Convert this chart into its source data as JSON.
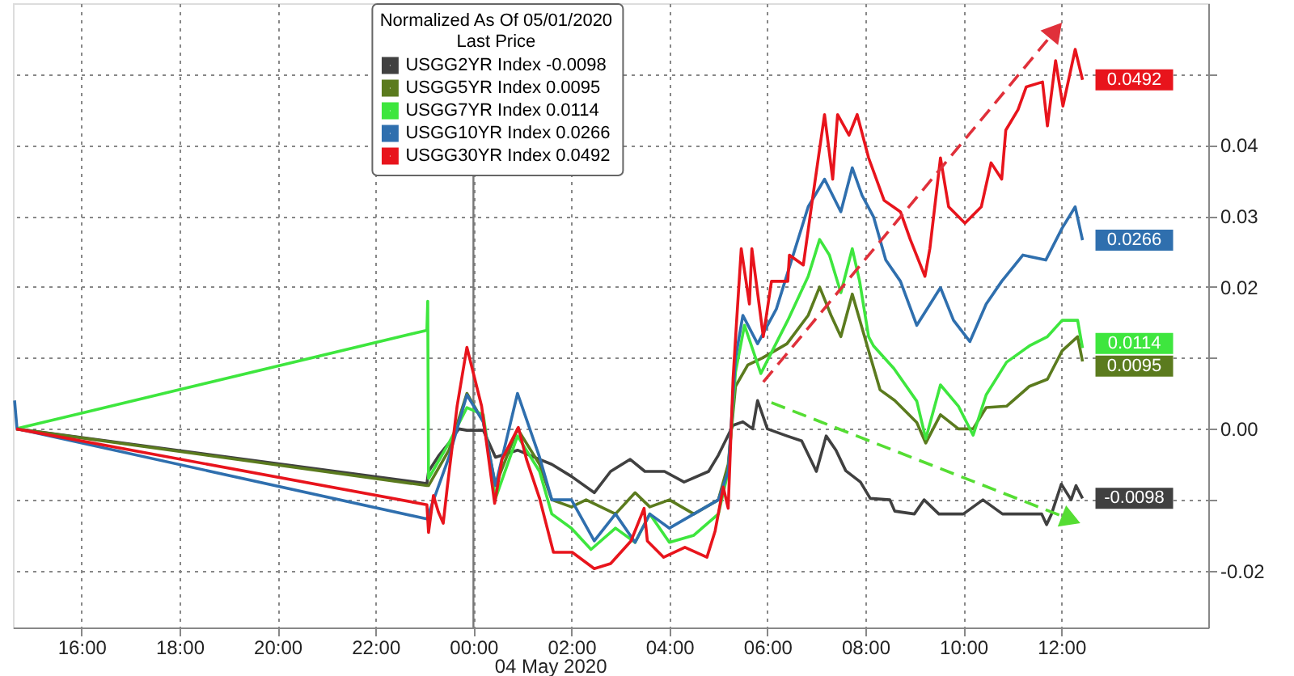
{
  "chart_data": {
    "type": "line",
    "legend_title": "Normalized As Of 05/01/2020\nLast Price",
    "legend": "top",
    "grid": true,
    "xlim": [
      "2020-05-03T14:36",
      "2020-05-04T15:00"
    ],
    "ylim": [
      -0.028,
      0.06
    ],
    "xticks": [
      {
        "value": "2020-05-03T16:00",
        "label": "16:00"
      },
      {
        "value": "2020-05-03T18:00",
        "label": "18:00"
      },
      {
        "value": "2020-05-03T20:00",
        "label": "20:00"
      },
      {
        "value": "2020-05-03T22:00",
        "label": "22:00"
      },
      {
        "value": "2020-05-04T00:00",
        "label": "00:00"
      },
      {
        "value": "2020-05-04T02:00",
        "label": "02:00"
      },
      {
        "value": "2020-05-04T04:00",
        "label": "04:00"
      },
      {
        "value": "2020-05-04T06:00",
        "label": "06:00"
      },
      {
        "value": "2020-05-04T08:00",
        "label": "08:00"
      },
      {
        "value": "2020-05-04T10:00",
        "label": "10:00"
      },
      {
        "value": "2020-05-04T12:00",
        "label": "12:00"
      }
    ],
    "yticks": [
      {
        "value": -0.02,
        "label": "-0.02"
      },
      {
        "value": -0.01,
        "label": null
      },
      {
        "value": 0,
        "label": "0.00"
      },
      {
        "value": 0.01,
        "label": null
      },
      0.02,
      0.03,
      0.04,
      {
        "value": 0.05,
        "label": null
      }
    ],
    "ref_lines": [
      {
        "axis": "x",
        "value": "2020-05-04T00:00",
        "color": "#777777"
      }
    ],
    "annotations": [
      "04 May 2020"
    ],
    "series": [
      {
        "name": "USGG2YR Index -0.0098",
        "color": "#404040",
        "value_labels": [
          null,
          null,
          null,
          null,
          null,
          null,
          null,
          null,
          null,
          null,
          null,
          null,
          null,
          null,
          null,
          null,
          null,
          null,
          null,
          null,
          null,
          null,
          null,
          null,
          null,
          null,
          null,
          null,
          null,
          null,
          null,
          null,
          null,
          null,
          null,
          null,
          null,
          null,
          null,
          null,
          null,
          null,
          null,
          null,
          null,
          null,
          null,
          null,
          null,
          "-0.0098"
        ],
        "x": [
          "2020-05-03T14:40",
          "2020-05-03T23:03",
          "2020-05-03T23:05",
          "2020-05-03T23:18",
          "2020-05-03T23:30",
          "2020-05-03T23:42",
          "2020-05-03T23:52",
          "2020-05-04T00:12",
          "2020-05-04T00:27",
          "2020-05-04T00:54",
          "2020-05-04T01:21",
          "2020-05-04T01:36",
          "2020-05-04T02:00",
          "2020-05-04T02:28",
          "2020-05-04T02:48",
          "2020-05-04T03:12",
          "2020-05-04T03:30",
          "2020-05-04T03:54",
          "2020-05-04T04:18",
          "2020-05-04T04:48",
          "2020-05-04T05:00",
          "2020-05-04T05:18",
          "2020-05-04T05:30",
          "2020-05-04T05:42",
          "2020-05-04T05:48",
          "2020-05-04T06:00",
          "2020-05-04T06:24",
          "2020-05-04T06:42",
          "2020-05-04T07:00",
          "2020-05-04T07:12",
          "2020-05-04T07:24",
          "2020-05-04T07:36",
          "2020-05-04T07:54",
          "2020-05-04T08:06",
          "2020-05-04T08:30",
          "2020-05-04T08:36",
          "2020-05-04T09:00",
          "2020-05-04T09:12",
          "2020-05-04T09:30",
          "2020-05-04T10:00",
          "2020-05-04T10:24",
          "2020-05-04T10:48",
          "2020-05-04T11:18",
          "2020-05-04T11:36",
          "2020-05-04T11:42",
          "2020-05-04T11:48",
          "2020-05-04T12:00",
          "2020-05-04T12:12",
          "2020-05-04T12:18",
          "2020-05-04T12:26"
        ],
        "values": [
          0,
          -0.0077,
          -0.006,
          -0.0037,
          -0.002,
          0.0,
          -0.0002,
          -0.0002,
          -0.004,
          -0.003,
          -0.0043,
          -0.005,
          -0.0067,
          -0.009,
          -0.006,
          -0.0043,
          -0.006,
          -0.006,
          -0.0075,
          -0.006,
          -0.0037,
          0.0005,
          0.001,
          0.0,
          0.004,
          0.0,
          -0.001,
          -0.0017,
          -0.006,
          -0.001,
          -0.003,
          -0.0059,
          -0.0075,
          -0.0098,
          -0.01,
          -0.0116,
          -0.012,
          -0.01,
          -0.012,
          -0.012,
          -0.01,
          -0.012,
          -0.012,
          -0.012,
          -0.0135,
          -0.012,
          -0.0078,
          -0.01,
          -0.008,
          -0.0098
        ]
      },
      {
        "name": "USGG5YR Index 0.0095",
        "color": "#5b7b1e",
        "value_labels": [
          null,
          null,
          null,
          null,
          null,
          null,
          null,
          null,
          null,
          null,
          null,
          null,
          null,
          null,
          null,
          null,
          null,
          null,
          null,
          null,
          null,
          null,
          null,
          null,
          null,
          null,
          null,
          null,
          null,
          null,
          null,
          null,
          null,
          null,
          null,
          null,
          null,
          null,
          null,
          null,
          null,
          null,
          "0.0095"
        ],
        "x": [
          "2020-05-03T14:40",
          "2020-05-03T23:03",
          "2020-05-03T23:05",
          "2020-05-03T23:30",
          "2020-05-03T23:52",
          "2020-05-04T00:12",
          "2020-05-04T00:27",
          "2020-05-04T00:54",
          "2020-05-04T01:21",
          "2020-05-04T01:36",
          "2020-05-04T02:00",
          "2020-05-04T02:18",
          "2020-05-04T02:54",
          "2020-05-04T03:18",
          "2020-05-04T03:36",
          "2020-05-04T04:00",
          "2020-05-04T04:30",
          "2020-05-04T05:00",
          "2020-05-04T05:12",
          "2020-05-04T05:21",
          "2020-05-04T05:36",
          "2020-05-04T05:54",
          "2020-05-04T06:24",
          "2020-05-04T06:50",
          "2020-05-04T07:04",
          "2020-05-04T07:18",
          "2020-05-04T07:30",
          "2020-05-04T07:44",
          "2020-05-04T08:04",
          "2020-05-04T08:18",
          "2020-05-04T08:36",
          "2020-05-04T09:03",
          "2020-05-04T09:14",
          "2020-05-04T09:32",
          "2020-05-04T09:54",
          "2020-05-04T10:12",
          "2020-05-04T10:28",
          "2020-05-04T10:53",
          "2020-05-04T11:21",
          "2020-05-04T11:43",
          "2020-05-04T12:01",
          "2020-05-04T12:20",
          "2020-05-04T12:26"
        ],
        "values": [
          0,
          -0.008,
          -0.008,
          -0.003,
          0.005,
          0.001,
          -0.008,
          0.0,
          -0.005,
          -0.01,
          -0.011,
          -0.01,
          -0.012,
          -0.009,
          -0.011,
          -0.01,
          -0.012,
          -0.01,
          -0.005,
          0.006,
          0.009,
          0.01,
          0.012,
          0.016,
          0.02,
          0.016,
          0.013,
          0.019,
          0.011,
          0.0055,
          0.004,
          0.0009,
          -0.002,
          0.002,
          0.0,
          0.0,
          0.003,
          0.0032,
          0.006,
          0.007,
          0.011,
          0.013,
          0.0095
        ]
      },
      {
        "name": "USGG7YR Index 0.0114",
        "color": "#3ee63e",
        "value_labels": [
          null,
          null,
          null,
          null,
          null,
          null,
          null,
          null,
          null,
          null,
          null,
          null,
          null,
          null,
          null,
          null,
          null,
          null,
          null,
          null,
          null,
          null,
          null,
          null,
          null,
          null,
          null,
          null,
          null,
          null,
          null,
          null,
          null,
          null,
          null,
          null,
          null,
          null,
          null,
          null,
          null,
          null,
          null,
          null,
          "0.0114"
        ],
        "x": [
          "2020-05-03T14:40",
          "2020-05-03T23:03",
          "2020-05-03T23:04",
          "2020-05-03T23:05",
          "2020-05-03T23:30",
          "2020-05-03T23:52",
          "2020-05-04T00:12",
          "2020-05-04T00:27",
          "2020-05-04T00:54",
          "2020-05-04T01:21",
          "2020-05-04T01:36",
          "2020-05-04T02:00",
          "2020-05-04T02:24",
          "2020-05-04T02:54",
          "2020-05-04T03:18",
          "2020-05-04T03:36",
          "2020-05-04T04:00",
          "2020-05-04T04:30",
          "2020-05-04T05:00",
          "2020-05-04T05:12",
          "2020-05-04T05:21",
          "2020-05-04T05:32",
          "2020-05-04T05:52",
          "2020-05-04T06:25",
          "2020-05-04T06:50",
          "2020-05-04T07:04",
          "2020-05-04T07:16",
          "2020-05-04T07:30",
          "2020-05-04T07:44",
          "2020-05-04T07:53",
          "2020-05-04T08:04",
          "2020-05-04T08:10",
          "2020-05-04T08:35",
          "2020-05-04T09:03",
          "2020-05-04T09:14",
          "2020-05-04T09:32",
          "2020-05-04T09:54",
          "2020-05-04T10:12",
          "2020-05-04T10:28",
          "2020-05-04T10:53",
          "2020-05-04T11:21",
          "2020-05-04T11:43",
          "2020-05-04T12:01",
          "2020-05-04T12:20",
          "2020-05-04T12:26"
        ],
        "values": [
          0,
          0.0139,
          0.018,
          -0.007,
          -0.002,
          0.003,
          0.002,
          -0.0098,
          -0.001,
          -0.006,
          -0.012,
          -0.014,
          -0.017,
          -0.014,
          -0.016,
          -0.012,
          -0.016,
          -0.015,
          -0.012,
          -0.006,
          0.008,
          0.0146,
          0.0078,
          0.0153,
          0.0215,
          0.0267,
          0.0245,
          0.0192,
          0.0254,
          0.0208,
          0.013,
          0.0117,
          0.0085,
          0.0039,
          -0.0014,
          0.0062,
          0.0032,
          -0.0009,
          0.0048,
          0.0094,
          0.0117,
          0.013,
          0.0153,
          0.0153,
          0.0114
        ]
      },
      {
        "name": "USGG10YR Index 0.0266",
        "color": "#2f6fae",
        "value_labels": [
          null,
          null,
          null,
          null,
          null,
          null,
          null,
          null,
          null,
          null,
          null,
          null,
          null,
          null,
          null,
          null,
          null,
          null,
          null,
          null,
          null,
          null,
          null,
          null,
          null,
          null,
          null,
          null,
          null,
          null,
          null,
          null,
          null,
          null,
          null,
          null,
          null,
          null,
          null,
          null,
          null,
          null,
          "0.0266"
        ],
        "x": [
          "2020-05-03T14:38",
          "2020-05-03T14:41",
          "2020-05-03T23:03",
          "2020-05-03T23:05",
          "2020-05-03T23:30",
          "2020-05-03T23:52",
          "2020-05-04T00:12",
          "2020-05-04T00:27",
          "2020-05-04T00:54",
          "2020-05-04T01:21",
          "2020-05-04T01:36",
          "2020-05-04T02:00",
          "2020-05-04T02:28",
          "2020-05-04T02:54",
          "2020-05-04T03:18",
          "2020-05-04T03:36",
          "2020-05-04T04:00",
          "2020-05-04T04:30",
          "2020-05-04T05:00",
          "2020-05-04T05:12",
          "2020-05-04T05:21",
          "2020-05-04T05:30",
          "2020-05-04T05:48",
          "2020-05-04T06:11",
          "2020-05-04T06:50",
          "2020-05-04T07:10",
          "2020-05-04T07:30",
          "2020-05-04T07:44",
          "2020-05-04T07:56",
          "2020-05-04T08:10",
          "2020-05-04T08:25",
          "2020-05-04T08:43",
          "2020-05-04T09:03",
          "2020-05-04T09:32",
          "2020-05-04T09:48",
          "2020-05-04T10:08",
          "2020-05-04T10:28",
          "2020-05-04T10:47",
          "2020-05-04T11:13",
          "2020-05-04T11:41",
          "2020-05-04T12:01",
          "2020-05-04T12:17",
          "2020-05-04T12:26"
        ],
        "values": [
          0.004,
          0,
          -0.0127,
          -0.012,
          -0.004,
          0.0048,
          0.001,
          -0.008,
          0.005,
          -0.004,
          -0.01,
          -0.01,
          -0.0158,
          -0.012,
          -0.016,
          -0.012,
          -0.014,
          -0.012,
          -0.01,
          -0.006,
          0.01,
          0.016,
          0.012,
          0.0169,
          0.0313,
          0.0352,
          0.0306,
          0.0368,
          0.0329,
          0.0299,
          0.0238,
          0.0208,
          0.0146,
          0.0199,
          0.0153,
          0.0123,
          0.0176,
          0.0208,
          0.0245,
          0.0238,
          0.0283,
          0.0313,
          0.0266
        ]
      },
      {
        "name": "USGG30YR Index 0.0492",
        "color": "#e8141c",
        "value_labels": [
          null,
          null,
          null,
          null,
          null,
          null,
          null,
          null,
          null,
          null,
          null,
          null,
          null,
          null,
          null,
          null,
          null,
          null,
          null,
          null,
          null,
          null,
          null,
          null,
          null,
          null,
          null,
          null,
          null,
          null,
          null,
          null,
          null,
          null,
          null,
          null,
          null,
          null,
          null,
          null,
          null,
          null,
          null,
          null,
          null,
          null,
          null,
          null,
          null,
          null,
          null,
          null,
          null,
          null,
          null,
          null,
          null,
          null,
          null,
          null,
          null,
          null,
          null,
          null,
          "0.0492"
        ],
        "x": [
          "2020-05-03T14:40",
          "2020-05-03T23:03",
          "2020-05-03T23:05",
          "2020-05-03T23:11",
          "2020-05-03T23:17",
          "2020-05-03T23:23",
          "2020-05-03T23:28",
          "2020-05-03T23:40",
          "2020-05-03T23:52",
          "2020-05-04T00:10",
          "2020-05-04T00:26",
          "2020-05-04T00:35",
          "2020-05-04T00:55",
          "2020-05-04T01:05",
          "2020-05-04T01:21",
          "2020-05-04T01:38",
          "2020-05-04T02:01",
          "2020-05-04T02:28",
          "2020-05-04T02:48",
          "2020-05-04T03:13",
          "2020-05-04T03:29",
          "2020-05-04T03:33",
          "2020-05-04T03:53",
          "2020-05-04T04:19",
          "2020-05-04T04:46",
          "2020-05-04T04:56",
          "2020-05-04T05:06",
          "2020-05-04T05:12",
          "2020-05-04T05:18",
          "2020-05-04T05:22",
          "2020-05-04T05:28",
          "2020-05-04T05:38",
          "2020-05-04T05:41",
          "2020-05-04T05:55",
          "2020-05-04T06:05",
          "2020-05-04T06:25",
          "2020-05-04T06:27",
          "2020-05-04T06:44",
          "2020-05-04T06:55",
          "2020-05-04T07:10",
          "2020-05-04T07:20",
          "2020-05-04T07:26",
          "2020-05-04T07:40",
          "2020-05-04T07:50",
          "2020-05-04T08:04",
          "2020-05-04T08:23",
          "2020-05-04T08:43",
          "2020-05-04T08:55",
          "2020-05-04T09:13",
          "2020-05-04T09:19",
          "2020-05-04T09:32",
          "2020-05-04T09:42",
          "2020-05-04T10:02",
          "2020-05-04T10:22",
          "2020-05-04T10:34",
          "2020-05-04T10:47",
          "2020-05-04T10:52",
          "2020-05-04T11:07",
          "2020-05-04T11:17",
          "2020-05-04T11:37",
          "2020-05-04T11:43",
          "2020-05-04T11:53",
          "2020-05-04T12:02",
          "2020-05-04T12:17",
          "2020-05-04T12:26"
        ],
        "values": [
          0,
          -0.0107,
          -0.0146,
          -0.0094,
          -0.0117,
          -0.0133,
          -0.0082,
          0.0032,
          0.0115,
          0.0032,
          -0.0105,
          -0.0043,
          0.0002,
          -0.0043,
          -0.0098,
          -0.0174,
          -0.0174,
          -0.0197,
          -0.019,
          -0.0158,
          -0.0112,
          -0.0158,
          -0.0181,
          -0.0167,
          -0.0181,
          -0.0144,
          -0.0082,
          -0.0112,
          0.0071,
          0.0146,
          0.0254,
          0.0176,
          0.0254,
          0.013,
          0.0208,
          0.0208,
          0.0245,
          0.0231,
          0.0322,
          0.0443,
          0.0352,
          0.0443,
          0.0414,
          0.0443,
          0.0382,
          0.0322,
          0.0306,
          0.0267,
          0.0215,
          0.0254,
          0.0382,
          0.0313,
          0.029,
          0.0313,
          0.0375,
          0.0352,
          0.0421,
          0.045,
          0.0482,
          0.0489,
          0.0427,
          0.0519,
          0.0455,
          0.0535,
          0.0492
        ]
      },
      {
        "type": "line",
        "color": "#e0303a",
        "line_style": "dashed",
        "x": [
          "2020-05-04T05:55",
          "2020-05-04T11:53"
        ],
        "values": [
          0.0066,
          0.0562
        ]
      },
      {
        "type": "line",
        "color": "#55dd33",
        "line_style": "dashed",
        "x": [
          "2020-05-04T06:05",
          "2020-05-04T12:12"
        ],
        "values": [
          0.0037,
          -0.0128
        ]
      }
    ]
  }
}
